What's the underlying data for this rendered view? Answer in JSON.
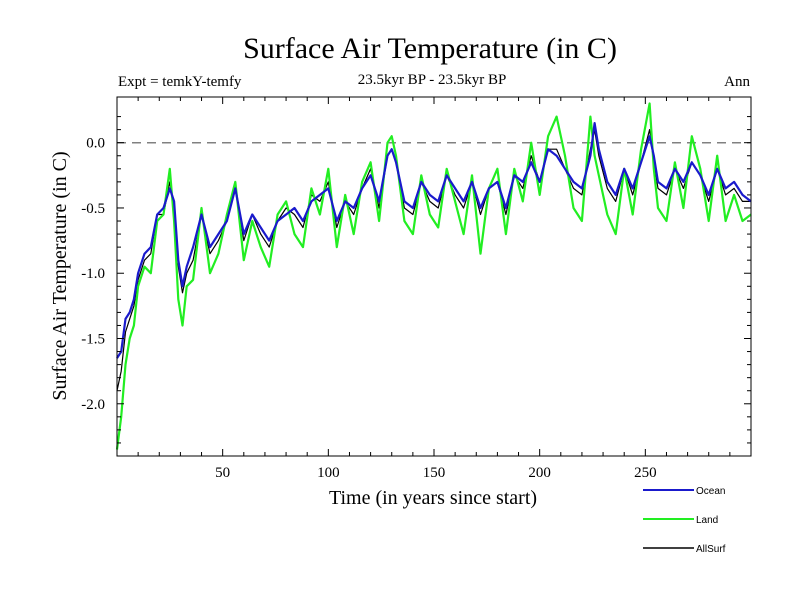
{
  "chart_data": {
    "type": "line",
    "title": "Surface Air Temperature (in C)",
    "subtitle": "23.5kyr BP - 23.5kyr BP",
    "experiment_label": "Expt = temkY-temfy",
    "season_label": "Ann",
    "xlabel": "Time (in years since start)",
    "ylabel": "Surface Air Temperature (in C)",
    "xlim": [
      0,
      300
    ],
    "ylim": [
      -2.4,
      0.35
    ],
    "x_ticks": [
      50,
      100,
      150,
      200,
      250
    ],
    "y_ticks": [
      0.0,
      -0.5,
      -1.0,
      -1.5,
      -2.0
    ],
    "x_tick_labels": [
      "50",
      "100",
      "150",
      "200",
      "250"
    ],
    "y_tick_labels": [
      "0.0",
      "-0.5",
      "-1.0",
      "-1.5",
      "-2.0"
    ],
    "reference_line": {
      "y": 0.0,
      "style": "dashed",
      "color": "#808080"
    },
    "legend_position": "bottom-right, below plot",
    "series": [
      {
        "name": "Ocean",
        "color": "#1a1acc",
        "x": [
          0,
          2,
          4,
          6,
          8,
          10,
          13,
          16,
          19,
          22,
          25,
          27,
          29,
          31,
          33,
          36,
          40,
          44,
          48,
          52,
          56,
          60,
          64,
          68,
          72,
          76,
          80,
          84,
          88,
          92,
          96,
          100,
          104,
          108,
          112,
          116,
          120,
          124,
          128,
          130,
          132,
          136,
          140,
          144,
          148,
          152,
          156,
          160,
          164,
          168,
          172,
          176,
          180,
          184,
          188,
          192,
          196,
          200,
          204,
          208,
          212,
          216,
          220,
          224,
          226,
          228,
          232,
          236,
          240,
          244,
          248,
          252,
          254,
          256,
          260,
          264,
          268,
          272,
          276,
          280,
          284,
          288,
          292,
          296,
          300
        ],
        "values": [
          -1.65,
          -1.6,
          -1.35,
          -1.3,
          -1.2,
          -1.0,
          -0.85,
          -0.8,
          -0.55,
          -0.5,
          -0.35,
          -0.45,
          -0.9,
          -1.1,
          -0.95,
          -0.8,
          -0.55,
          -0.8,
          -0.7,
          -0.6,
          -0.35,
          -0.7,
          -0.55,
          -0.65,
          -0.75,
          -0.6,
          -0.55,
          -0.5,
          -0.6,
          -0.45,
          -0.4,
          -0.35,
          -0.6,
          -0.45,
          -0.5,
          -0.35,
          -0.25,
          -0.45,
          -0.1,
          -0.05,
          -0.15,
          -0.45,
          -0.5,
          -0.3,
          -0.4,
          -0.45,
          -0.25,
          -0.35,
          -0.45,
          -0.3,
          -0.5,
          -0.35,
          -0.3,
          -0.5,
          -0.25,
          -0.3,
          -0.15,
          -0.3,
          -0.05,
          -0.1,
          -0.2,
          -0.3,
          -0.35,
          -0.1,
          0.15,
          -0.05,
          -0.3,
          -0.4,
          -0.2,
          -0.35,
          -0.15,
          0.05,
          -0.1,
          -0.3,
          -0.35,
          -0.2,
          -0.3,
          -0.15,
          -0.25,
          -0.4,
          -0.2,
          -0.35,
          -0.3,
          -0.4,
          -0.45
        ]
      },
      {
        "name": "Land",
        "color": "#22ee22",
        "x": [
          0,
          2,
          4,
          6,
          8,
          10,
          13,
          16,
          19,
          22,
          25,
          27,
          29,
          31,
          33,
          36,
          40,
          44,
          48,
          52,
          56,
          60,
          64,
          68,
          72,
          76,
          80,
          84,
          88,
          92,
          96,
          100,
          104,
          108,
          112,
          116,
          120,
          124,
          128,
          130,
          132,
          136,
          140,
          144,
          148,
          152,
          156,
          160,
          164,
          168,
          172,
          176,
          180,
          184,
          188,
          192,
          196,
          200,
          204,
          208,
          212,
          216,
          220,
          224,
          226,
          228,
          232,
          236,
          240,
          244,
          248,
          252,
          254,
          256,
          260,
          264,
          268,
          272,
          276,
          280,
          284,
          288,
          292,
          296,
          300
        ],
        "values": [
          -2.35,
          -2.1,
          -1.7,
          -1.5,
          -1.4,
          -1.1,
          -0.95,
          -1.0,
          -0.6,
          -0.55,
          -0.2,
          -0.6,
          -1.2,
          -1.4,
          -1.1,
          -1.05,
          -0.5,
          -1.0,
          -0.85,
          -0.55,
          -0.3,
          -0.9,
          -0.6,
          -0.8,
          -0.95,
          -0.55,
          -0.45,
          -0.7,
          -0.8,
          -0.35,
          -0.55,
          -0.2,
          -0.8,
          -0.4,
          -0.7,
          -0.3,
          -0.15,
          -0.6,
          0.0,
          0.05,
          -0.1,
          -0.6,
          -0.7,
          -0.25,
          -0.55,
          -0.65,
          -0.2,
          -0.45,
          -0.7,
          -0.25,
          -0.85,
          -0.35,
          -0.2,
          -0.7,
          -0.2,
          -0.45,
          0.0,
          -0.4,
          0.05,
          0.2,
          -0.1,
          -0.5,
          -0.6,
          0.2,
          -0.1,
          -0.25,
          -0.55,
          -0.7,
          -0.2,
          -0.55,
          -0.05,
          0.3,
          -0.2,
          -0.5,
          -0.6,
          -0.15,
          -0.5,
          0.05,
          -0.2,
          -0.6,
          -0.1,
          -0.6,
          -0.4,
          -0.6,
          -0.55
        ]
      },
      {
        "name": "AllSurf",
        "color": "#000000",
        "x": [
          0,
          2,
          4,
          6,
          8,
          10,
          13,
          16,
          19,
          22,
          25,
          27,
          29,
          31,
          33,
          36,
          40,
          44,
          48,
          52,
          56,
          60,
          64,
          68,
          72,
          76,
          80,
          84,
          88,
          92,
          96,
          100,
          104,
          108,
          112,
          116,
          120,
          124,
          128,
          130,
          132,
          136,
          140,
          144,
          148,
          152,
          156,
          160,
          164,
          168,
          172,
          176,
          180,
          184,
          188,
          192,
          196,
          200,
          204,
          208,
          212,
          216,
          220,
          224,
          226,
          228,
          232,
          236,
          240,
          244,
          248,
          252,
          254,
          256,
          260,
          264,
          268,
          272,
          276,
          280,
          284,
          288,
          292,
          296,
          300
        ],
        "values": [
          -1.9,
          -1.75,
          -1.45,
          -1.35,
          -1.25,
          -1.05,
          -0.9,
          -0.85,
          -0.55,
          -0.55,
          -0.3,
          -0.5,
          -0.95,
          -1.15,
          -1.0,
          -0.9,
          -0.55,
          -0.85,
          -0.75,
          -0.6,
          -0.35,
          -0.75,
          -0.55,
          -0.7,
          -0.8,
          -0.6,
          -0.5,
          -0.55,
          -0.65,
          -0.4,
          -0.45,
          -0.3,
          -0.65,
          -0.45,
          -0.55,
          -0.35,
          -0.2,
          -0.5,
          -0.1,
          -0.05,
          -0.15,
          -0.5,
          -0.55,
          -0.3,
          -0.45,
          -0.5,
          -0.25,
          -0.4,
          -0.5,
          -0.3,
          -0.55,
          -0.35,
          -0.3,
          -0.55,
          -0.25,
          -0.35,
          -0.1,
          -0.3,
          -0.05,
          -0.05,
          -0.2,
          -0.35,
          -0.4,
          -0.05,
          0.1,
          -0.1,
          -0.35,
          -0.45,
          -0.2,
          -0.4,
          -0.15,
          0.1,
          -0.15,
          -0.35,
          -0.4,
          -0.2,
          -0.35,
          -0.15,
          -0.25,
          -0.45,
          -0.2,
          -0.4,
          -0.35,
          -0.45,
          -0.45
        ]
      }
    ]
  }
}
